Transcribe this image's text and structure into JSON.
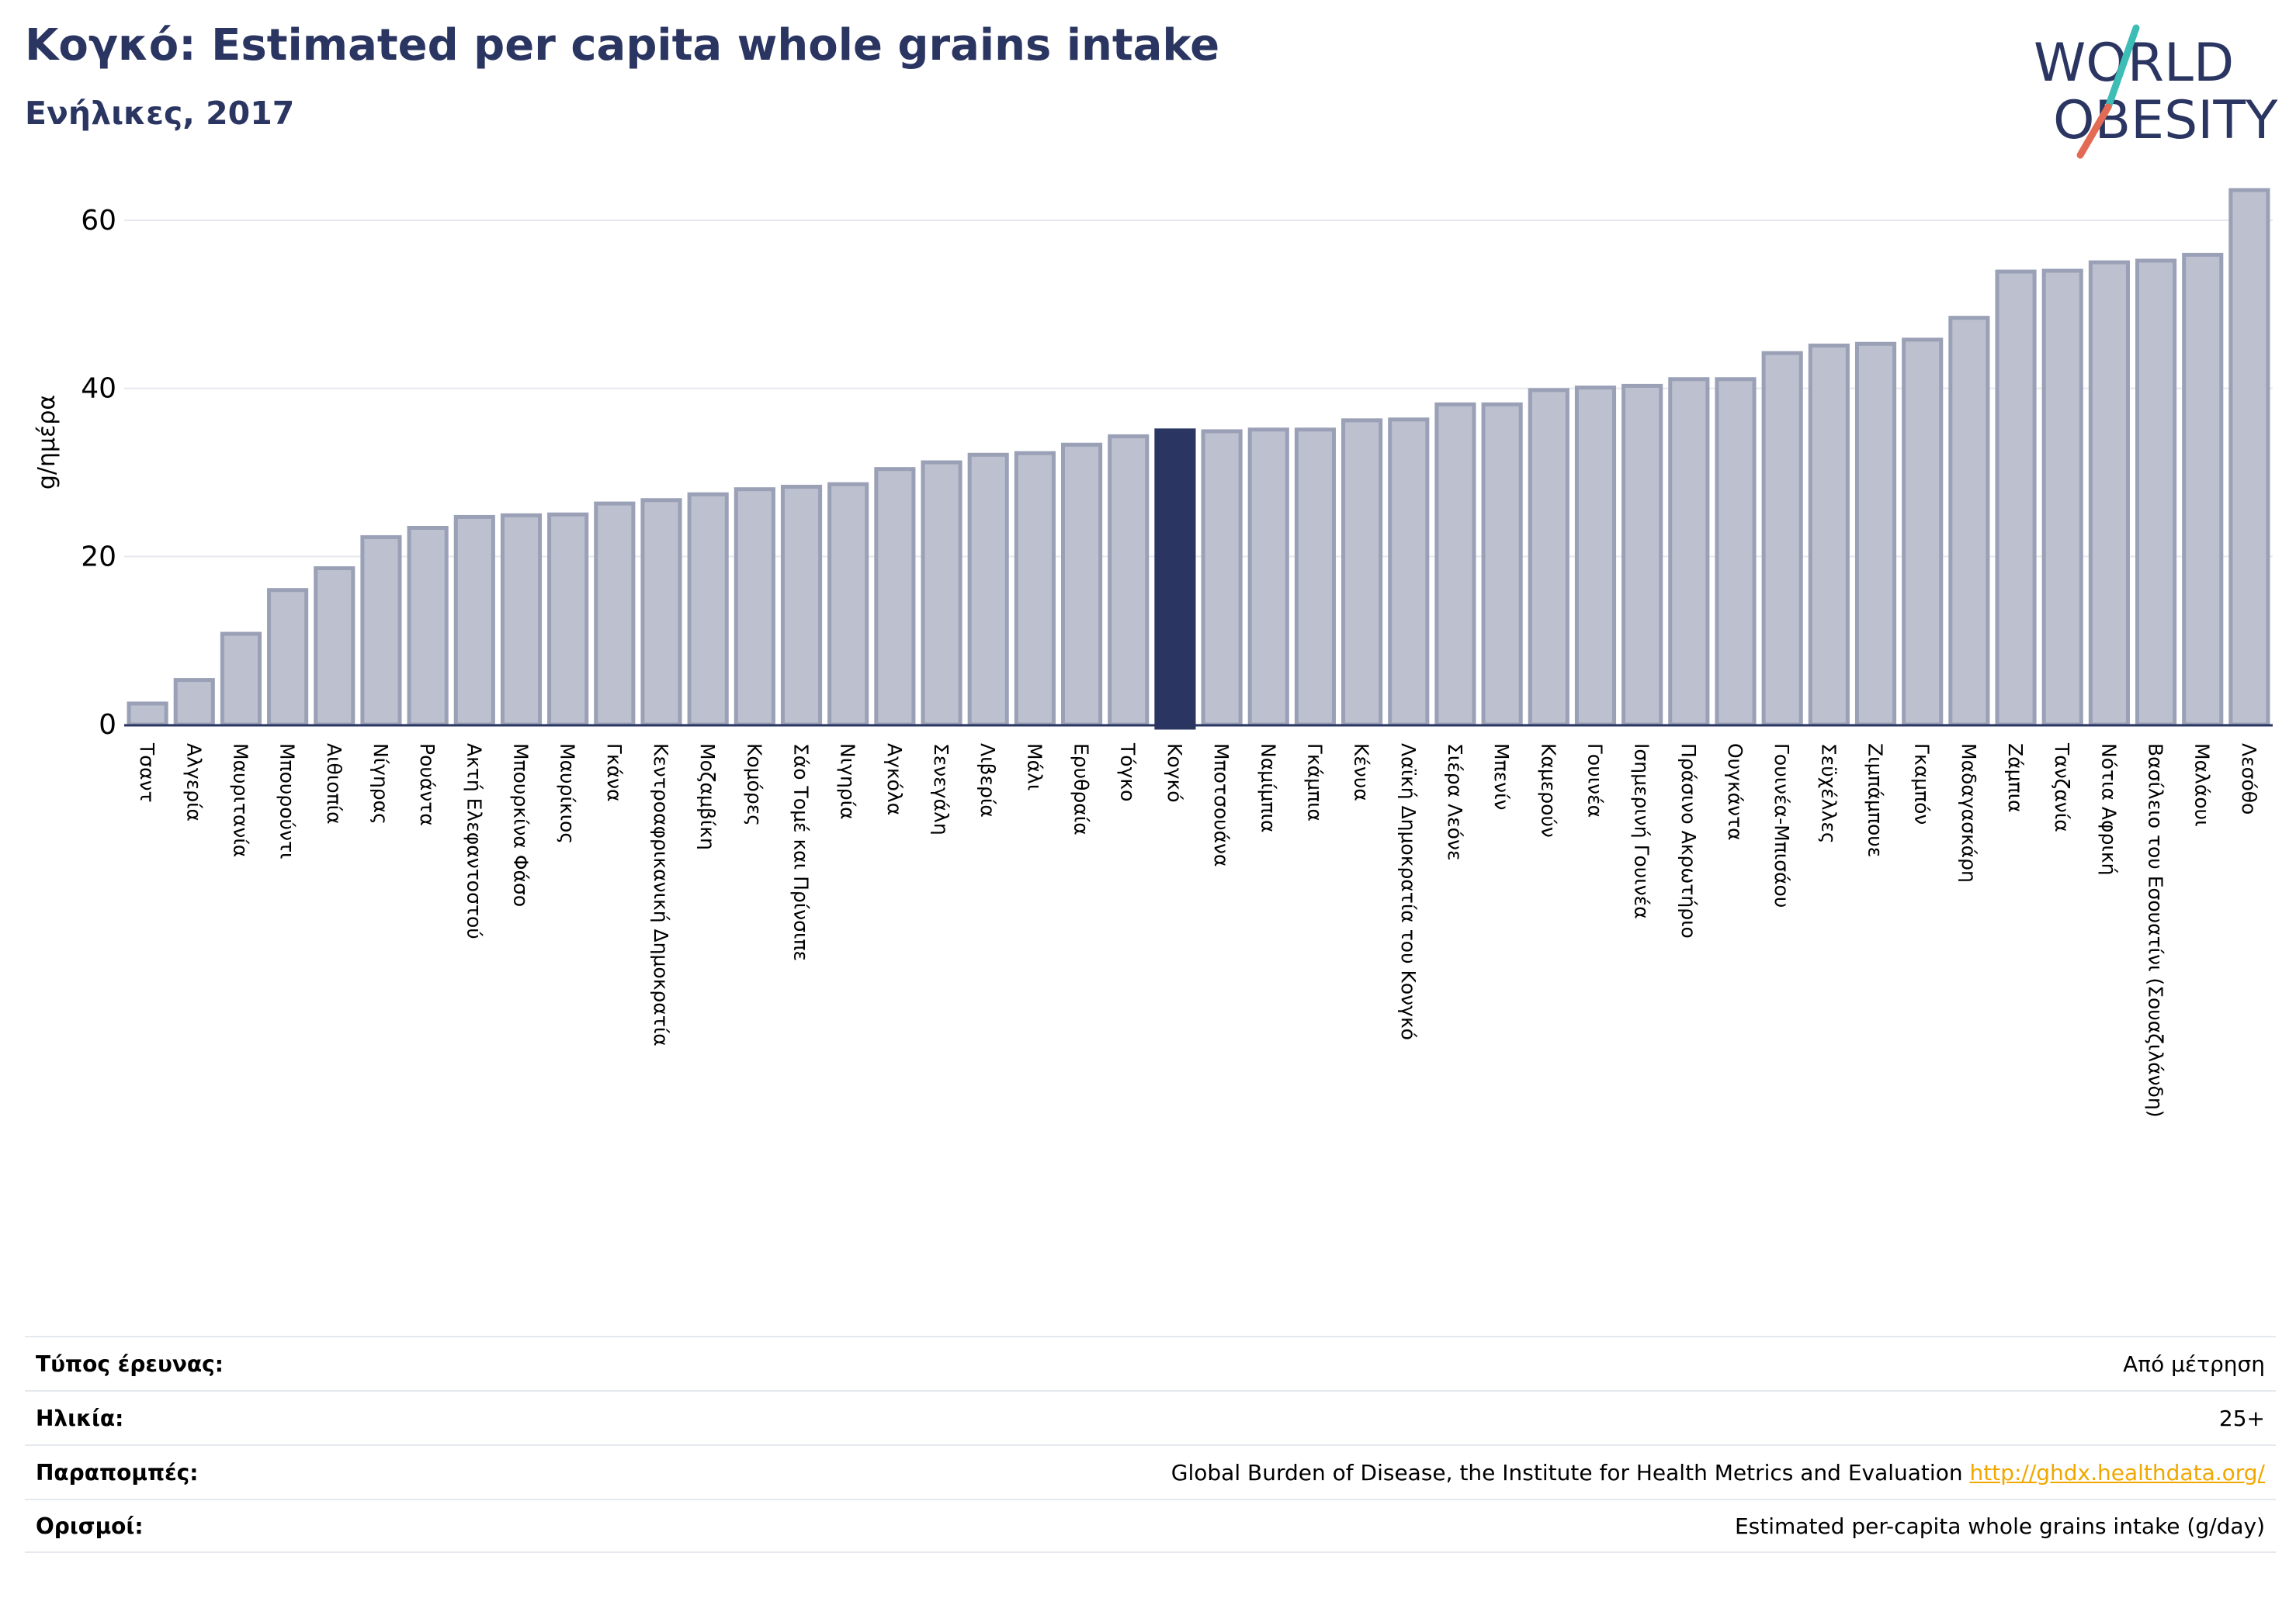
{
  "header": {
    "title": "Κογκό: Estimated per capita whole grains intake",
    "subtitle": "Ενήλικες, 2017"
  },
  "logo": {
    "line1": "WORLD",
    "line2": "OBESITY",
    "colors": {
      "text": "#2a3561",
      "slash_top": "#3dbdb5",
      "slash_bottom": "#e36a55"
    }
  },
  "chart_data": {
    "type": "bar",
    "ylabel": "g/ημέρα",
    "ylim": [
      0,
      64
    ],
    "yticks": [
      0,
      20,
      40,
      60
    ],
    "grid": true,
    "highlight": "Κογκό",
    "colors": {
      "bar": "#bcc0cf",
      "bar_border": "#9aa0b6",
      "highlight": "#2a3561",
      "grid": "#e6e8ef"
    },
    "categories": [
      "Τσαντ",
      "Αλγερία",
      "Μαυριτανία",
      "Μπουρούντι",
      "Αιθιοπία",
      "Νίγηρας",
      "Ρουάντα",
      "Ακτή Ελεφαντοστού",
      "Μπουρκίνα Φάσο",
      "Μαυρίκιος",
      "Γκάνα",
      "Κεντροαφρικανική Δημοκρατία",
      "Μοζαμβίκη",
      "Κομόρες",
      "Σάο Τομέ και Πρίνσιπε",
      "Νιγηρία",
      "Αγκόλα",
      "Σενεγάλη",
      "Λιβερία",
      "Μάλι",
      "Ερυθραία",
      "Τόγκο",
      "Κογκό",
      "Μποτσουάνα",
      "Ναμίμπια",
      "Γκάμπια",
      "Κένυα",
      "Λαϊκή Δημοκρατία του Κονγκό",
      "Σιέρα Λεόνε",
      "Μπενίν",
      "Καμερούν",
      "Γουινέα",
      "Ισημερινή Γουινέα",
      "Πράσινο Ακρωτήριο",
      "Ουγκάντα",
      "Γουινέα-Μπισάου",
      "Σεϋχέλλες",
      "Ζιμπάμπουε",
      "Γκαμπόν",
      "Μαδαγασκάρη",
      "Ζάμπια",
      "Τανζανία",
      "Νότια Αφρική",
      "Βασίλειο του Εσουατίνι (Σουαζιλάνδη)",
      "Μαλάουι",
      "Λεσόθο"
    ],
    "values": [
      2.5,
      5.3,
      10.8,
      16.0,
      18.6,
      22.3,
      23.4,
      24.7,
      24.9,
      25.0,
      26.3,
      26.7,
      27.4,
      28.0,
      28.3,
      28.6,
      30.4,
      31.2,
      32.1,
      32.3,
      33.3,
      34.3,
      35.0,
      34.9,
      35.1,
      35.1,
      36.2,
      36.3,
      38.1,
      38.1,
      39.8,
      40.1,
      40.3,
      41.1,
      41.1,
      44.2,
      45.1,
      45.3,
      45.8,
      48.4,
      53.9,
      54.0,
      55.0,
      55.2,
      55.9,
      63.6
    ]
  },
  "info": [
    {
      "label": "Τύπος έρευνας:",
      "value": "Από μέτρηση"
    },
    {
      "label": "Ηλικία:",
      "value": "25+"
    },
    {
      "label": "Παραπομπές:",
      "value": "Global Burden of Disease, the Institute for Health Metrics and Evaluation",
      "link": "http://ghdx.healthdata.org/"
    },
    {
      "label": "Ορισμοί:",
      "value": "Estimated per-capita whole grains intake (g/day)"
    }
  ]
}
